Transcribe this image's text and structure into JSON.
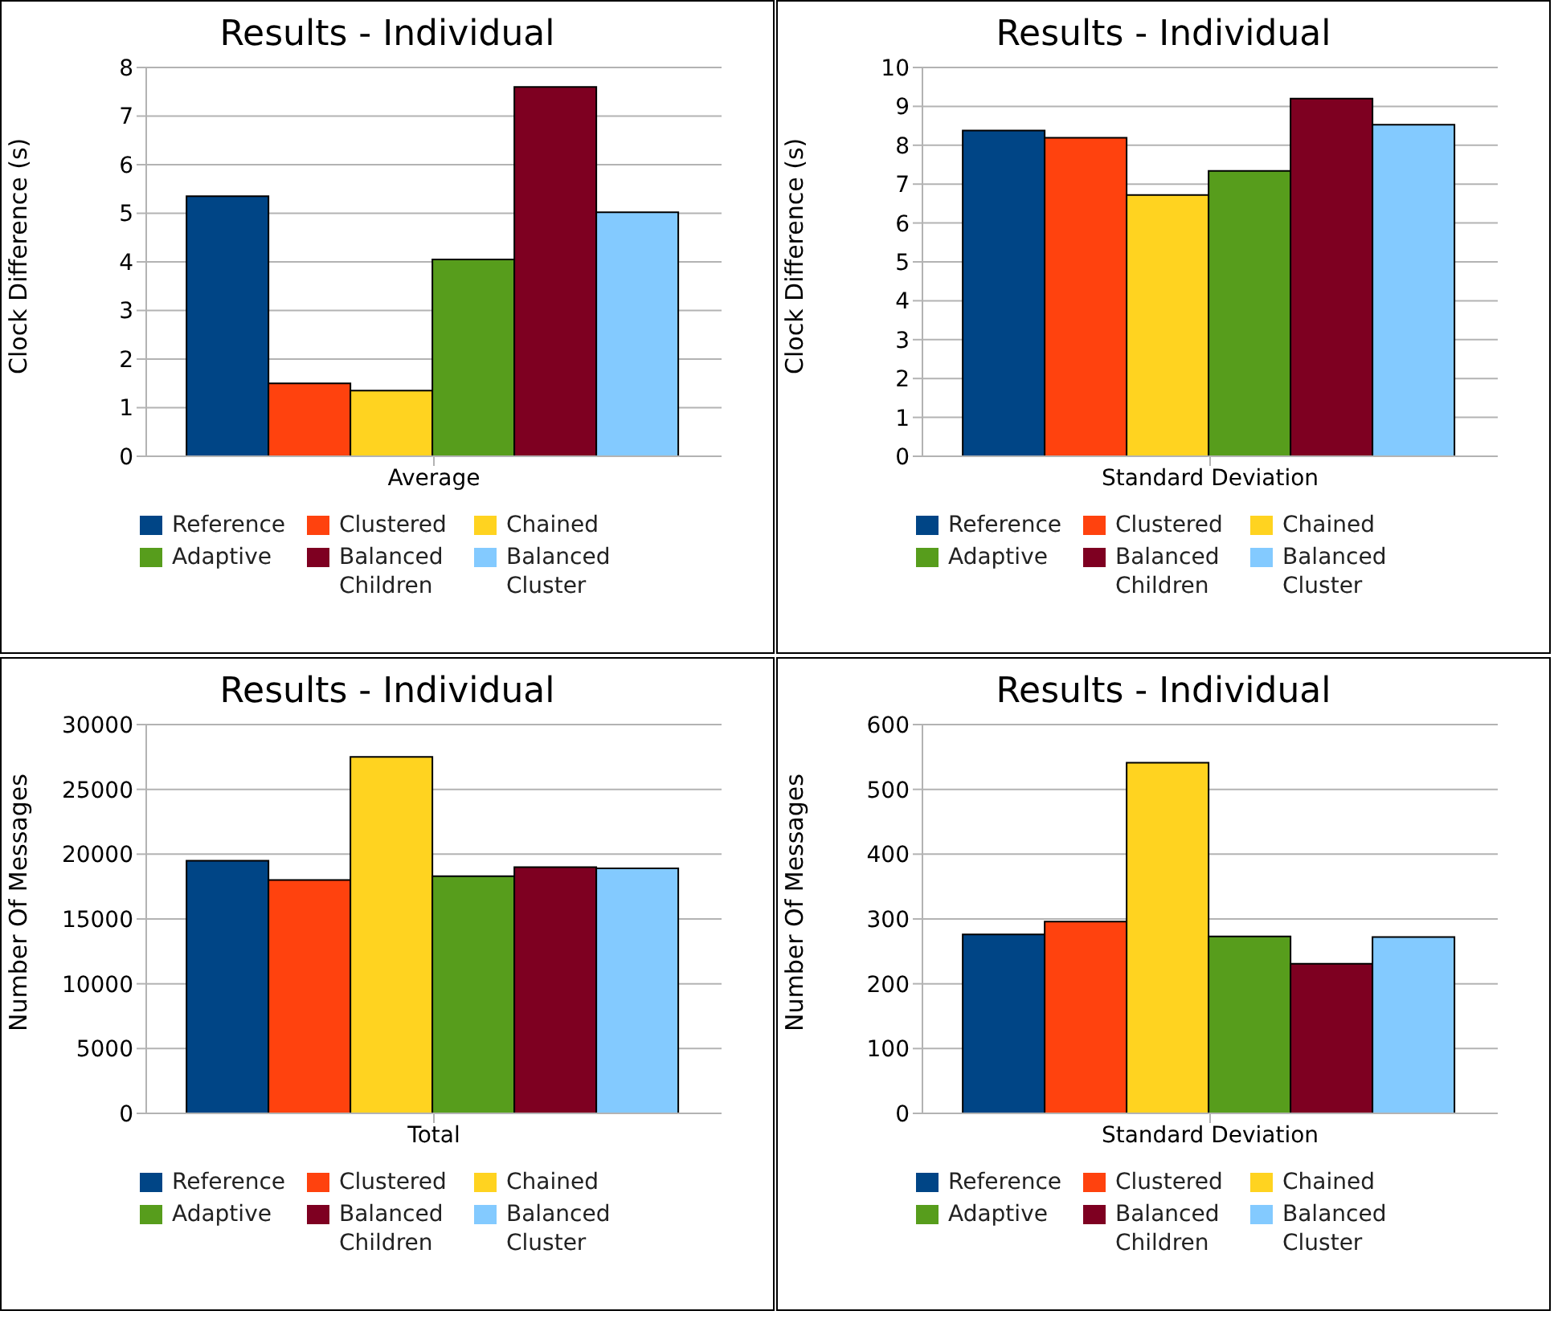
{
  "chart_data": [
    {
      "type": "bar",
      "title": "Results - Individual",
      "ylabel": "Clock Difference (s)",
      "categories": [
        "Average"
      ],
      "ylim": [
        0,
        8
      ],
      "yticks": [
        0,
        1,
        2,
        3,
        4,
        5,
        6,
        7,
        8
      ],
      "grid": "y",
      "legend": "bottom",
      "series": [
        {
          "name": "Reference",
          "color": "#004586",
          "values": [
            5.35
          ]
        },
        {
          "name": "Clustered",
          "color": "#ff420e",
          "values": [
            1.5
          ]
        },
        {
          "name": "Chained",
          "color": "#ffd320",
          "values": [
            1.35
          ]
        },
        {
          "name": "Adaptive",
          "color": "#579d1c",
          "values": [
            4.05
          ]
        },
        {
          "name": "Balanced Children",
          "color": "#7e0021",
          "values": [
            7.6
          ]
        },
        {
          "name": "Balanced Cluster",
          "color": "#83caff",
          "values": [
            5.02
          ]
        }
      ]
    },
    {
      "type": "bar",
      "title": "Results - Individual",
      "ylabel": "Clock Difference (s)",
      "categories": [
        "Standard Deviation"
      ],
      "ylim": [
        0,
        10
      ],
      "yticks": [
        0,
        1,
        2,
        3,
        4,
        5,
        6,
        7,
        8,
        9,
        10
      ],
      "grid": "y",
      "legend": "bottom",
      "series": [
        {
          "name": "Reference",
          "color": "#004586",
          "values": [
            8.38
          ]
        },
        {
          "name": "Clustered",
          "color": "#ff420e",
          "values": [
            8.19
          ]
        },
        {
          "name": "Chained",
          "color": "#ffd320",
          "values": [
            6.72
          ]
        },
        {
          "name": "Adaptive",
          "color": "#579d1c",
          "values": [
            7.34
          ]
        },
        {
          "name": "Balanced Children",
          "color": "#7e0021",
          "values": [
            9.2
          ]
        },
        {
          "name": "Balanced Cluster",
          "color": "#83caff",
          "values": [
            8.53
          ]
        }
      ]
    },
    {
      "type": "bar",
      "title": "Results - Individual",
      "ylabel": "Number Of Messages",
      "categories": [
        "Total"
      ],
      "ylim": [
        0,
        30000
      ],
      "yticks": [
        0,
        5000,
        10000,
        15000,
        20000,
        25000,
        30000
      ],
      "grid": "y",
      "legend": "bottom",
      "series": [
        {
          "name": "Reference",
          "color": "#004586",
          "values": [
            19500
          ]
        },
        {
          "name": "Clustered",
          "color": "#ff420e",
          "values": [
            18000
          ]
        },
        {
          "name": "Chained",
          "color": "#ffd320",
          "values": [
            27500
          ]
        },
        {
          "name": "Adaptive",
          "color": "#579d1c",
          "values": [
            18300
          ]
        },
        {
          "name": "Balanced Children",
          "color": "#7e0021",
          "values": [
            19000
          ]
        },
        {
          "name": "Balanced Cluster",
          "color": "#83caff",
          "values": [
            18900
          ]
        }
      ]
    },
    {
      "type": "bar",
      "title": "Results - Individual",
      "ylabel": "Number Of Messages",
      "categories": [
        "Standard Deviation"
      ],
      "ylim": [
        0,
        600
      ],
      "yticks": [
        0,
        100,
        200,
        300,
        400,
        500,
        600
      ],
      "grid": "y",
      "legend": "bottom",
      "series": [
        {
          "name": "Reference",
          "color": "#004586",
          "values": [
            276
          ]
        },
        {
          "name": "Clustered",
          "color": "#ff420e",
          "values": [
            296
          ]
        },
        {
          "name": "Chained",
          "color": "#ffd320",
          "values": [
            541
          ]
        },
        {
          "name": "Adaptive",
          "color": "#579d1c",
          "values": [
            273
          ]
        },
        {
          "name": "Balanced Children",
          "color": "#7e0021",
          "values": [
            231
          ]
        },
        {
          "name": "Balanced Cluster",
          "color": "#83caff",
          "values": [
            272
          ]
        }
      ]
    }
  ]
}
